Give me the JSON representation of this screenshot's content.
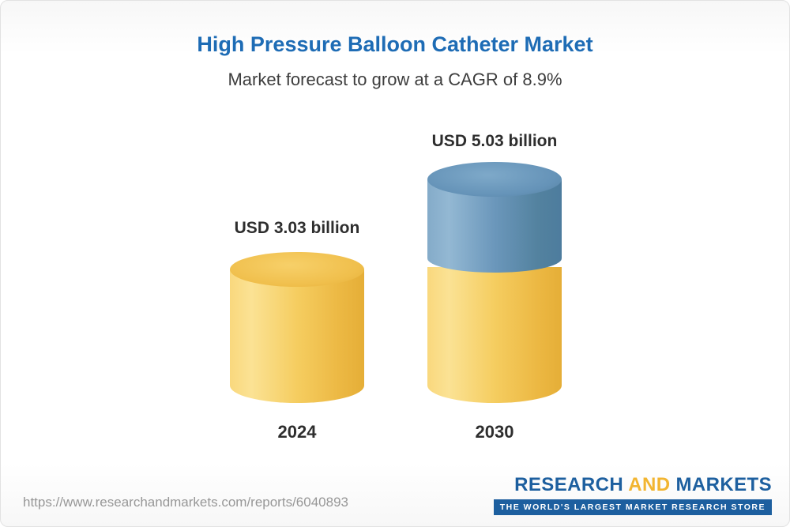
{
  "header": {
    "title": "High Pressure Balloon Catheter Market",
    "subtitle": "Market forecast to grow at a CAGR of 8.9%"
  },
  "chart_data": {
    "type": "bar",
    "style": "3d-cylinder",
    "categories": [
      "2024",
      "2030"
    ],
    "values": [
      3.03,
      5.03
    ],
    "unit": "USD billion",
    "labels": [
      "USD 3.03 billion",
      "USD 5.03 billion"
    ],
    "cagr_percent": 8.9,
    "segments_2030": {
      "base_matching_2024": 3.03,
      "growth_highlight": 2.0
    },
    "colors": {
      "bar_yellow": "#F5CD60",
      "bar_blue": "#6B97BB",
      "title_blue": "#1E6CB5",
      "label_dark": "#2E2E2E"
    },
    "legend_position": "none",
    "grid": false
  },
  "footer": {
    "url": "https://www.researchandmarkets.com/reports/6040893",
    "logo": {
      "research": "RESEARCH",
      "and": "AND",
      "markets": "MARKETS",
      "tagline": "THE WORLD'S LARGEST MARKET RESEARCH STORE"
    }
  }
}
